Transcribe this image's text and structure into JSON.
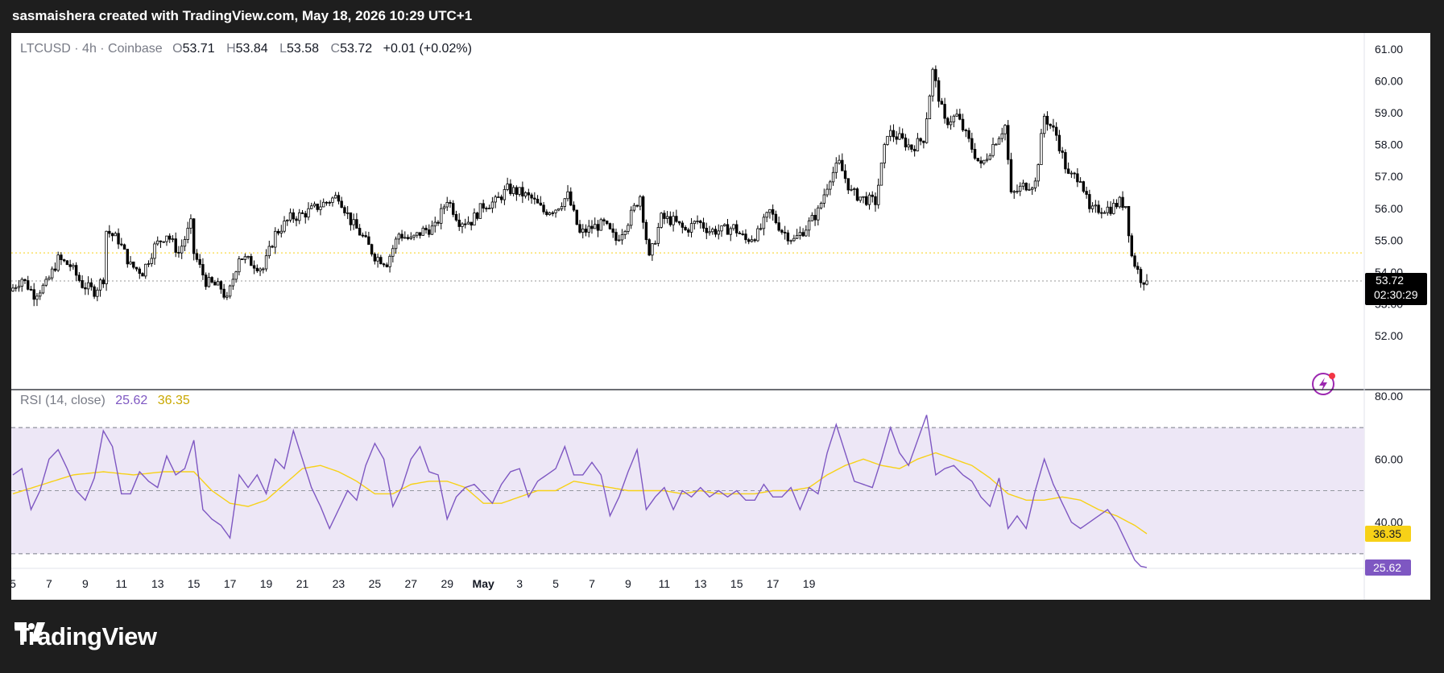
{
  "header": {
    "caption": "sasmaishera created with TradingView.com, May 18, 2026 10:29 UTC+1"
  },
  "legend": {
    "symbol": "LTCUSD · 4h · Coinbase",
    "o_label": "O",
    "o_value": "53.71",
    "h_label": "H",
    "h_value": "53.84",
    "l_label": "L",
    "l_value": "53.58",
    "c_label": "C",
    "c_value": "53.72",
    "change": "+0.01 (+0.02%)"
  },
  "price_badge": {
    "value": "53.72",
    "countdown": "02:30:29"
  },
  "rsi": {
    "label": "RSI (14, close)",
    "value": "25.62",
    "ma_value": "36.35"
  },
  "brand": {
    "name": "TradingView"
  },
  "colors": {
    "up": "#ffffff",
    "down": "#000000",
    "rsi": "#7e57c2",
    "rsi_ma": "#f7d117",
    "band": "#ede7f6",
    "badge": "#000000"
  },
  "chart_data": [
    {
      "type": "candlestick",
      "title": "LTCUSD · 4h · Coinbase",
      "ylim": [
        52,
        61
      ],
      "yticks": [
        "61.00",
        "60.00",
        "59.00",
        "58.00",
        "57.00",
        "56.00",
        "55.00",
        "54.00",
        "53.00",
        "52.00"
      ],
      "xticks": [
        "5",
        "7",
        "9",
        "11",
        "13",
        "15",
        "17",
        "19",
        "21",
        "23",
        "25",
        "27",
        "29",
        "May",
        "3",
        "5",
        "7",
        "9",
        "11",
        "13",
        "15",
        "17",
        "19"
      ],
      "x_tick_index": [
        0,
        12,
        24,
        36,
        48,
        60,
        72,
        84,
        96,
        108,
        120,
        132,
        144,
        156,
        168,
        180,
        192,
        204,
        216,
        228,
        240,
        252,
        264
      ],
      "last_price": 53.72,
      "close_path": [
        [
          0,
          53.5
        ],
        [
          3,
          53.8
        ],
        [
          7,
          53.3
        ],
        [
          11,
          53.6
        ],
        [
          15,
          54.4
        ],
        [
          19,
          54.2
        ],
        [
          23,
          53.6
        ],
        [
          27,
          53.4
        ],
        [
          30,
          53.8
        ],
        [
          31,
          55.3
        ],
        [
          35,
          55.0
        ],
        [
          39,
          54.2
        ],
        [
          43,
          54.0
        ],
        [
          47,
          54.8
        ],
        [
          51,
          55.2
        ],
        [
          55,
          54.6
        ],
        [
          59,
          55.5
        ],
        [
          60,
          54.6
        ],
        [
          64,
          53.7
        ],
        [
          69,
          53.5
        ],
        [
          71,
          53.1
        ],
        [
          75,
          54.5
        ],
        [
          79,
          54.3
        ],
        [
          83,
          54.1
        ],
        [
          87,
          55.2
        ],
        [
          92,
          55.7
        ],
        [
          96,
          55.8
        ],
        [
          100,
          56.0
        ],
        [
          104,
          56.2
        ],
        [
          108,
          56.4
        ],
        [
          112,
          55.6
        ],
        [
          116,
          55.1
        ],
        [
          120,
          54.5
        ],
        [
          124,
          54.3
        ],
        [
          128,
          55.2
        ],
        [
          132,
          55.0
        ],
        [
          136,
          55.3
        ],
        [
          140,
          55.4
        ],
        [
          144,
          56.3
        ],
        [
          148,
          55.6
        ],
        [
          152,
          55.6
        ],
        [
          156,
          56.1
        ],
        [
          160,
          56.2
        ],
        [
          164,
          56.6
        ],
        [
          168,
          56.5
        ],
        [
          172,
          56.3
        ],
        [
          176,
          55.9
        ],
        [
          180,
          56.0
        ],
        [
          184,
          56.4
        ],
        [
          188,
          55.2
        ],
        [
          192,
          55.4
        ],
        [
          196,
          55.5
        ],
        [
          200,
          55.0
        ],
        [
          204,
          55.6
        ],
        [
          208,
          56.4
        ],
        [
          211,
          54.4
        ],
        [
          215,
          55.7
        ],
        [
          219,
          55.6
        ],
        [
          223,
          55.3
        ],
        [
          227,
          55.6
        ],
        [
          231,
          55.3
        ],
        [
          235,
          55.3
        ],
        [
          239,
          55.4
        ],
        [
          243,
          55.0
        ],
        [
          247,
          55.2
        ],
        [
          251,
          55.9
        ],
        [
          255,
          55.3
        ],
        [
          259,
          55.0
        ],
        [
          263,
          55.4
        ],
        [
          267,
          55.9
        ],
        [
          271,
          57.0
        ],
        [
          274,
          57.4
        ],
        [
          278,
          56.5
        ],
        [
          282,
          56.3
        ],
        [
          286,
          56.2
        ],
        [
          290,
          58.4
        ],
        [
          294,
          58.2
        ],
        [
          298,
          57.9
        ],
        [
          302,
          58.2
        ],
        [
          305,
          60.3
        ],
        [
          309,
          58.7
        ],
        [
          313,
          58.9
        ],
        [
          317,
          58.1
        ],
        [
          321,
          57.3
        ],
        [
          325,
          58.0
        ],
        [
          329,
          58.6
        ],
        [
          331,
          56.4
        ],
        [
          335,
          56.7
        ],
        [
          339,
          56.8
        ],
        [
          342,
          58.9
        ],
        [
          346,
          58.3
        ],
        [
          350,
          57.0
        ],
        [
          354,
          57.0
        ],
        [
          357,
          55.9
        ],
        [
          361,
          56.0
        ],
        [
          364,
          56.0
        ],
        [
          367,
          56.2
        ],
        [
          369,
          56.1
        ],
        [
          371,
          54.5
        ],
        [
          374,
          53.8
        ],
        [
          376,
          53.72
        ]
      ]
    },
    {
      "type": "line",
      "title": "RSI (14, close)",
      "ylim": [
        20,
        80
      ],
      "yticks": [
        "80.00",
        "60.00",
        "40.00"
      ],
      "bands": [
        30,
        50,
        70
      ],
      "series": [
        {
          "name": "RSI",
          "values_path": [
            [
              0,
              55
            ],
            [
              3,
              57
            ],
            [
              6,
              44
            ],
            [
              9,
              50
            ],
            [
              12,
              60
            ],
            [
              15,
              63
            ],
            [
              18,
              57
            ],
            [
              21,
              50
            ],
            [
              24,
              47
            ],
            [
              27,
              54
            ],
            [
              30,
              69
            ],
            [
              33,
              64
            ],
            [
              36,
              49
            ],
            [
              39,
              49
            ],
            [
              42,
              56
            ],
            [
              45,
              53
            ],
            [
              48,
              51
            ],
            [
              51,
              61
            ],
            [
              54,
              55
            ],
            [
              57,
              57
            ],
            [
              60,
              66
            ],
            [
              63,
              44
            ],
            [
              66,
              41
            ],
            [
              69,
              39
            ],
            [
              72,
              35
            ],
            [
              75,
              55
            ],
            [
              78,
              51
            ],
            [
              81,
              55
            ],
            [
              84,
              49
            ],
            [
              87,
              60
            ],
            [
              90,
              57
            ],
            [
              93,
              69
            ],
            [
              96,
              60
            ],
            [
              99,
              51
            ],
            [
              102,
              45
            ],
            [
              105,
              38
            ],
            [
              108,
              44
            ],
            [
              111,
              50
            ],
            [
              114,
              47
            ],
            [
              117,
              58
            ],
            [
              120,
              65
            ],
            [
              123,
              60
            ],
            [
              126,
              45
            ],
            [
              129,
              51
            ],
            [
              132,
              60
            ],
            [
              135,
              64
            ],
            [
              138,
              56
            ],
            [
              141,
              55
            ],
            [
              144,
              41
            ],
            [
              147,
              48
            ],
            [
              150,
              51
            ],
            [
              153,
              52
            ],
            [
              156,
              49
            ],
            [
              159,
              46
            ],
            [
              162,
              52
            ],
            [
              165,
              56
            ],
            [
              168,
              57
            ],
            [
              171,
              48
            ],
            [
              174,
              53
            ],
            [
              177,
              55
            ],
            [
              180,
              57
            ],
            [
              183,
              64
            ],
            [
              186,
              55
            ],
            [
              189,
              55
            ],
            [
              192,
              59
            ],
            [
              195,
              55
            ],
            [
              198,
              42
            ],
            [
              201,
              48
            ],
            [
              204,
              56
            ],
            [
              207,
              63
            ],
            [
              210,
              44
            ],
            [
              213,
              48
            ],
            [
              216,
              51
            ],
            [
              219,
              44
            ],
            [
              222,
              50
            ],
            [
              225,
              48
            ],
            [
              228,
              51
            ],
            [
              231,
              48
            ],
            [
              234,
              50
            ],
            [
              237,
              48
            ],
            [
              240,
              50
            ],
            [
              243,
              47
            ],
            [
              246,
              47
            ],
            [
              249,
              52
            ],
            [
              252,
              48
            ],
            [
              255,
              48
            ],
            [
              258,
              51
            ],
            [
              261,
              44
            ],
            [
              264,
              51
            ],
            [
              267,
              49
            ],
            [
              270,
              62
            ],
            [
              273,
              71
            ],
            [
              276,
              62
            ],
            [
              279,
              53
            ],
            [
              282,
              52
            ],
            [
              285,
              51
            ],
            [
              288,
              60
            ],
            [
              291,
              70
            ],
            [
              294,
              62
            ],
            [
              297,
              58
            ],
            [
              300,
              66
            ],
            [
              303,
              74
            ],
            [
              306,
              55
            ],
            [
              309,
              57
            ],
            [
              312,
              58
            ],
            [
              315,
              55
            ],
            [
              318,
              53
            ],
            [
              321,
              48
            ],
            [
              324,
              45
            ],
            [
              327,
              54
            ],
            [
              330,
              38
            ],
            [
              333,
              42
            ],
            [
              336,
              38
            ],
            [
              339,
              50
            ],
            [
              342,
              60
            ],
            [
              345,
              52
            ],
            [
              348,
              46
            ],
            [
              351,
              40
            ],
            [
              354,
              38
            ],
            [
              357,
              40
            ],
            [
              360,
              42
            ],
            [
              363,
              44
            ],
            [
              366,
              40
            ],
            [
              369,
              34
            ],
            [
              372,
              28
            ],
            [
              374,
              26
            ],
            [
              376,
              25.62
            ]
          ]
        },
        {
          "name": "RSI-based MA",
          "values_path": [
            [
              0,
              49
            ],
            [
              10,
              52
            ],
            [
              20,
              55
            ],
            [
              30,
              56
            ],
            [
              40,
              55
            ],
            [
              50,
              56
            ],
            [
              60,
              56
            ],
            [
              66,
              50
            ],
            [
              72,
              46
            ],
            [
              78,
              45
            ],
            [
              84,
              47
            ],
            [
              90,
              52
            ],
            [
              96,
              57
            ],
            [
              102,
              58
            ],
            [
              108,
              56
            ],
            [
              114,
              53
            ],
            [
              120,
              49
            ],
            [
              126,
              49
            ],
            [
              132,
              52
            ],
            [
              138,
              53
            ],
            [
              144,
              53
            ],
            [
              150,
              51
            ],
            [
              156,
              46
            ],
            [
              162,
              46
            ],
            [
              168,
              48
            ],
            [
              174,
              50
            ],
            [
              180,
              50
            ],
            [
              186,
              53
            ],
            [
              192,
              52
            ],
            [
              198,
              51
            ],
            [
              204,
              50
            ],
            [
              210,
              50
            ],
            [
              216,
              50
            ],
            [
              222,
              49
            ],
            [
              228,
              50
            ],
            [
              234,
              49
            ],
            [
              240,
              49
            ],
            [
              246,
              49
            ],
            [
              252,
              50
            ],
            [
              258,
              50
            ],
            [
              264,
              51
            ],
            [
              270,
              55
            ],
            [
              276,
              58
            ],
            [
              282,
              60
            ],
            [
              288,
              58
            ],
            [
              294,
              57
            ],
            [
              300,
              60
            ],
            [
              306,
              62
            ],
            [
              312,
              60
            ],
            [
              318,
              58
            ],
            [
              324,
              54
            ],
            [
              330,
              49
            ],
            [
              336,
              47
            ],
            [
              342,
              47
            ],
            [
              348,
              48
            ],
            [
              354,
              47
            ],
            [
              360,
              44
            ],
            [
              366,
              42
            ],
            [
              372,
              39
            ],
            [
              376,
              36.35
            ]
          ]
        }
      ]
    }
  ]
}
